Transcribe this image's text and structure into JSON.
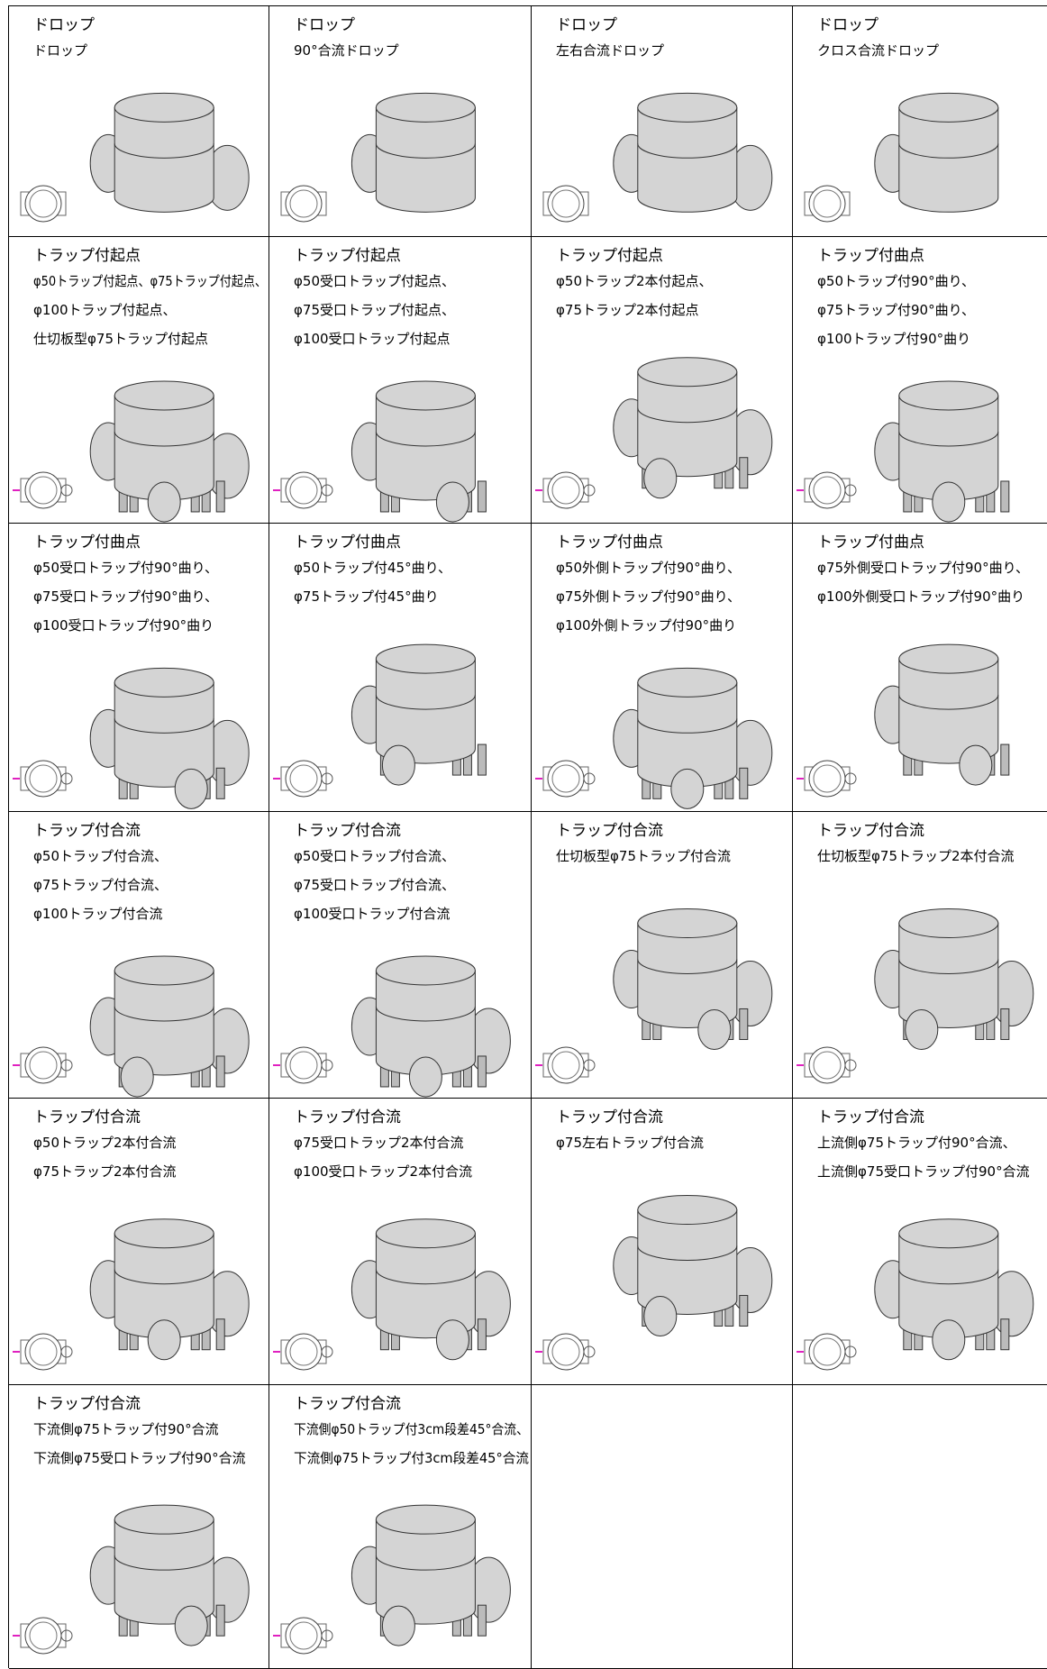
{
  "rows": [
    [
      {
        "title": "ドロップ",
        "lines": [
          "ドロップ"
        ]
      },
      {
        "title": "ドロップ",
        "lines": [
          "90°合流ドロップ"
        ]
      },
      {
        "title": "ドロップ",
        "lines": [
          "左右合流ドロップ"
        ]
      },
      {
        "title": "ドロップ",
        "lines": [
          "クロス合流ドロップ"
        ]
      }
    ],
    [
      {
        "title": "トラップ付起点",
        "lines": [
          "φ50トラップ付起点、φ75トラップ付起点、",
          "φ100トラップ付起点、",
          "仕切板型φ75トラップ付起点"
        ]
      },
      {
        "title": "トラップ付起点",
        "lines": [
          "φ50受口トラップ付起点、",
          "φ75受口トラップ付起点、",
          "φ100受口トラップ付起点"
        ]
      },
      {
        "title": "トラップ付起点",
        "lines": [
          "φ50トラップ2本付起点、",
          "φ75トラップ2本付起点"
        ]
      },
      {
        "title": "トラップ付曲点",
        "lines": [
          "φ50トラップ付90°曲り、",
          "φ75トラップ付90°曲り、",
          "φ100トラップ付90°曲り"
        ]
      }
    ],
    [
      {
        "title": "トラップ付曲点",
        "lines": [
          "φ50受口トラップ付90°曲り、",
          "φ75受口トラップ付90°曲り、",
          "φ100受口トラップ付90°曲り"
        ]
      },
      {
        "title": "トラップ付曲点",
        "lines": [
          "φ50トラップ付45°曲り、",
          "φ75トラップ付45°曲り"
        ]
      },
      {
        "title": "トラップ付曲点",
        "lines": [
          "φ50外側トラップ付90°曲り、",
          "φ75外側トラップ付90°曲り、",
          "φ100外側トラップ付90°曲り"
        ]
      },
      {
        "title": "トラップ付曲点",
        "lines": [
          "φ75外側受口トラップ付90°曲り、",
          "φ100外側受口トラップ付90°曲り"
        ]
      }
    ],
    [
      {
        "title": "トラップ付合流",
        "lines": [
          "φ50トラップ付合流、",
          "φ75トラップ付合流、",
          "φ100トラップ付合流"
        ]
      },
      {
        "title": "トラップ付合流",
        "lines": [
          "φ50受口トラップ付合流、",
          "φ75受口トラップ付合流、",
          "φ100受口トラップ付合流"
        ]
      },
      {
        "title": "トラップ付合流",
        "lines": [
          "仕切板型φ75トラップ付合流"
        ]
      },
      {
        "title": "トラップ付合流",
        "lines": [
          "仕切板型φ75トラップ2本付合流"
        ]
      }
    ],
    [
      {
        "title": "トラップ付合流",
        "lines": [
          "φ50トラップ2本付合流",
          "φ75トラップ2本付合流"
        ]
      },
      {
        "title": "トラップ付合流",
        "lines": [
          "φ75受口トラップ2本付合流",
          "φ100受口トラップ2本付合流"
        ]
      },
      {
        "title": "トラップ付合流",
        "lines": [
          "φ75左右トラップ付合流"
        ]
      },
      {
        "title": "トラップ付合流",
        "lines": [
          "上流側φ75トラップ付90°合流、",
          "上流側φ75受口トラップ付90°合流"
        ]
      }
    ],
    [
      {
        "title": "トラップ付合流",
        "lines": [
          "下流側φ75トラップ付90°合流",
          "下流側φ75受口トラップ付90°合流"
        ]
      },
      {
        "title": "トラップ付合流",
        "lines": [
          "下流側φ50トラップ付3cm段差45°合流、",
          "下流側φ75トラップ付3cm段差45°合流"
        ]
      }
    ]
  ]
}
